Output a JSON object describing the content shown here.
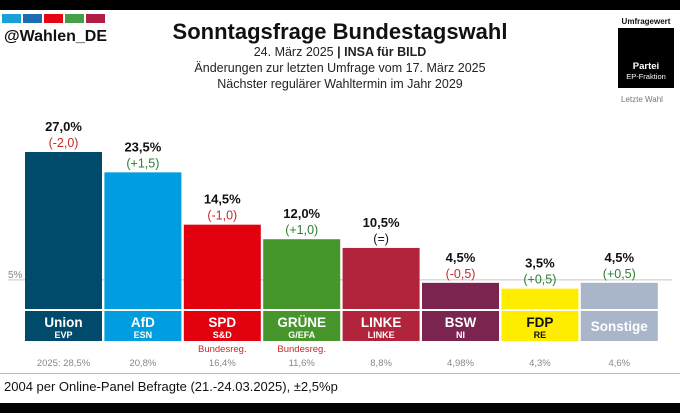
{
  "header": {
    "handle": "@Wahlen_DE",
    "title": "Sonntagsfrage Bundestagswahl",
    "date": "24. März 2025",
    "separator": "|",
    "pollster": "INSA für BILD",
    "changes_line": "Änderungen zur letzten Umfrage vom 17. März 2025",
    "next_election": "Nächster regulärer Wahltermin im Jahr 2029",
    "brand_colors": [
      "#19a0d8",
      "#1e6db0",
      "#e30613",
      "#43a047",
      "#b01e45"
    ]
  },
  "legend": {
    "umfragewert": "Umfragewert",
    "partei": "Partei",
    "fraktion": "EP-Fraktion",
    "letzte_wahl": "Letzte Wahl"
  },
  "chart_data": {
    "type": "bar",
    "categories": [
      "Union",
      "AfD",
      "SPD",
      "GRÜNE",
      "LINKE",
      "BSW",
      "FDP",
      "Sonstige"
    ],
    "values": [
      27.0,
      23.5,
      14.5,
      12.0,
      10.5,
      4.5,
      3.5,
      4.5
    ],
    "value_labels": [
      "27,0%",
      "23,5%",
      "14,5%",
      "12,0%",
      "10,5%",
      "4,5%",
      "3,5%",
      "4,5%"
    ],
    "change_labels": [
      "(-2,0)",
      "(+1,5)",
      "(-1,0)",
      "(+1,0)",
      "(=)",
      "(-0,5)",
      "(+0,5)",
      "(+0,5)"
    ],
    "changes": [
      -2.0,
      1.5,
      -1.0,
      1.0,
      0,
      -0.5,
      0.5,
      0.5
    ],
    "ep_groups": [
      "EVP",
      "ESN",
      "S&D",
      "G/EFA",
      "LINKE",
      "NI",
      "RE",
      ""
    ],
    "government_note": [
      "",
      "",
      "Bundesreg.",
      "Bundesreg.",
      "",
      "",
      "",
      ""
    ],
    "last_election_labels": [
      "2025: 28,5%",
      "20,8%",
      "16,4%",
      "11,6%",
      "8,8%",
      "4,98%",
      "4,3%",
      "4,6%"
    ],
    "last_election": [
      28.5,
      20.8,
      16.4,
      11.6,
      8.8,
      4.98,
      4.3,
      4.6
    ],
    "colors": [
      "#004b6b",
      "#009ee0",
      "#e3000f",
      "#46962b",
      "#b1243c",
      "#7b2450",
      "#ffed00",
      "#a9b6c9"
    ],
    "label_text_colors": [
      "#ffffff",
      "#ffffff",
      "#ffffff",
      "#ffffff",
      "#ffffff",
      "#ffffff",
      "#111111",
      "#ffffff"
    ],
    "threshold_label": "5%",
    "threshold": 5,
    "ylim": [
      0,
      27.0
    ],
    "positive_color": "#2e7d32",
    "negative_color": "#c62828"
  },
  "footer": {
    "note": "2004 per Online-Panel Befragte (21.-24.03.2025), ±2,5%p"
  }
}
